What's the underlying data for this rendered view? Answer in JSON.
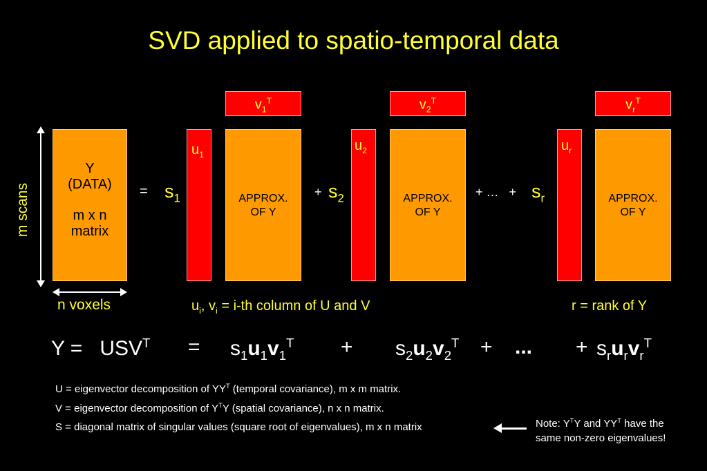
{
  "title": "SVD applied to spatio-temporal data",
  "data_box": {
    "line1": "Y",
    "line2": "(DATA)",
    "line3": "m x n",
    "line4": "matrix"
  },
  "axis": {
    "m_scans": "m scans",
    "n_voxels": "n voxels"
  },
  "equals": "=",
  "approx_line1": "APPROX.",
  "approx_line2": "OF Y",
  "plus": "+",
  "ellipsis_plus": "+ …   +",
  "s_letter": "s",
  "u_letter": "u",
  "v_letter": "v",
  "sub_1": "1",
  "sub_2": "2",
  "sub_r": "r",
  "sup_T": "T",
  "note_uv": {
    "prefix": "u",
    "i": "i",
    "mid": ", v",
    "suffix": " = i-th column of U and V"
  },
  "rank_note": "r = rank of Y",
  "formula": {
    "lhs": "Y =   USV",
    "sup": "T",
    "eq2": "=",
    "plus1": "+",
    "plus2": "+",
    "dots": "...",
    "plus3": "+"
  },
  "definitions": {
    "u_def_a": "U = eigenvector decomposition of YY",
    "u_def_b": " (temporal covariance), m x m matrix.",
    "v_def_a": "V = eigenvector decomposition of Y",
    "v_def_b": "Y (spatial covariance), n x n matrix.",
    "s_def": "S = diagonal matrix of singular values (square root of eigenvalues), m x n matrix"
  },
  "note": {
    "a": "Note: Y",
    "b": "Y and YY",
    "c": " have the",
    "line2": "same non-zero eigenvalues!"
  },
  "colors": {
    "background": "#000000",
    "title": "#ffff33",
    "box": "#ff9900",
    "vector": "#ff0000"
  }
}
